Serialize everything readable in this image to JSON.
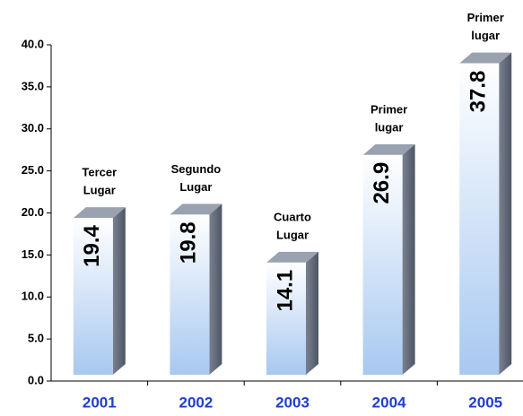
{
  "chart_data": {
    "type": "bar3d",
    "categories": [
      "2001",
      "2002",
      "2003",
      "2004",
      "2005"
    ],
    "values": [
      19.4,
      19.8,
      14.1,
      26.9,
      37.8
    ],
    "annotations": [
      [
        "Tercer",
        "Lugar"
      ],
      [
        "Segundo",
        "Lugar"
      ],
      [
        "Cuarto",
        "Lugar"
      ],
      [
        "Primer",
        "lugar"
      ],
      [
        "Primer",
        "lugar"
      ]
    ],
    "ylim": [
      0,
      40
    ],
    "yticks": [
      {
        "value": 0,
        "label": "0.0"
      },
      {
        "value": 5,
        "label": "5.0"
      },
      {
        "value": 10,
        "label": "10.0"
      },
      {
        "value": 15,
        "label": "15.0"
      },
      {
        "value": 20,
        "label": "20.0"
      },
      {
        "value": 25,
        "label": "25.0"
      },
      {
        "value": 30,
        "label": "30.0"
      },
      {
        "value": 35,
        "label": "35.0"
      },
      {
        "value": 40,
        "label": "40.0"
      }
    ],
    "color": "#a8c8f0"
  }
}
